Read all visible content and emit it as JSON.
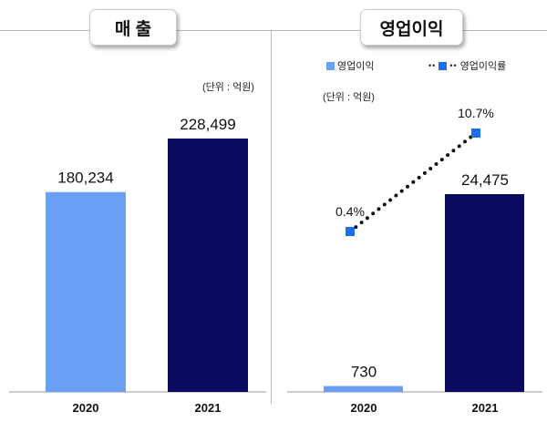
{
  "chart_data": [
    {
      "type": "bar",
      "title": "매 출",
      "unit": "(단위 : 억원)",
      "categories": [
        "2020",
        "2021"
      ],
      "values": [
        180234,
        228499
      ],
      "value_labels": [
        "180,234",
        "228,499"
      ],
      "colors": [
        "#6b9ef5",
        "#0a0a5e"
      ]
    },
    {
      "type": "bar+line",
      "title": "영업이익",
      "unit": "(단위 : 억원)",
      "categories": [
        "2020",
        "2021"
      ],
      "series": [
        {
          "name": "영업이익",
          "type": "bar",
          "values": [
            730,
            24475
          ],
          "value_labels": [
            "730",
            "24,475"
          ],
          "colors": [
            "#6b9ef5",
            "#0a0a5e"
          ]
        },
        {
          "name": "영업이익률",
          "type": "line",
          "values": [
            0.4,
            10.7
          ],
          "value_labels": [
            "0.4%",
            "10.7%"
          ],
          "color": "#1a6ef0",
          "line_style": "dotted"
        }
      ],
      "legend_placement": "top"
    }
  ]
}
